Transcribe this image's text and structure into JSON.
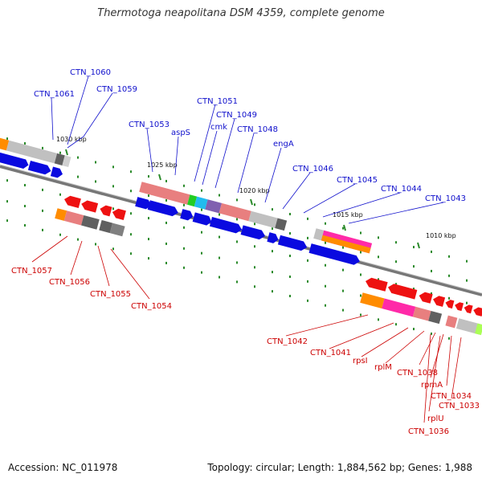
{
  "title": "Thermotoga neapolitana DSM 4359, complete genome",
  "footer": {
    "accession": "Accession: NC_011978",
    "topology": "Topology: circular; Length: 1,884,562 bp; Genes: 1,988"
  },
  "colors": {
    "forward_label": "#1010cc",
    "reverse_label": "#cc0000",
    "forward_arrow": "#0a0ae0",
    "reverse_arrow": "#ee1111",
    "backbone": "#888888",
    "tick": "#2a8a2a"
  },
  "scale_ticks": [
    {
      "label": "1030 kbp"
    },
    {
      "label": "1025 kbp"
    },
    {
      "label": "1020 kbp"
    },
    {
      "label": "1015 kbp"
    },
    {
      "label": "1010 kbp"
    }
  ],
  "forward_labels": [
    "CTN_1061",
    "CTN_1060",
    "CTN_1059",
    "CTN_1053",
    "aspS",
    "CTN_1051",
    "cmk",
    "CTN_1049",
    "CTN_1048",
    "engA",
    "CTN_1046",
    "CTN_1045",
    "CTN_1044",
    "CTN_1043"
  ],
  "reverse_labels": [
    "CTN_1057",
    "CTN_1056",
    "CTN_1055",
    "CTN_1054",
    "CTN_1042",
    "CTN_1041",
    "rpsI",
    "rplM",
    "CTN_1038",
    "rpmA",
    "CTN_1034",
    "CTN_1033",
    "rplU",
    "CTN_1036"
  ]
}
